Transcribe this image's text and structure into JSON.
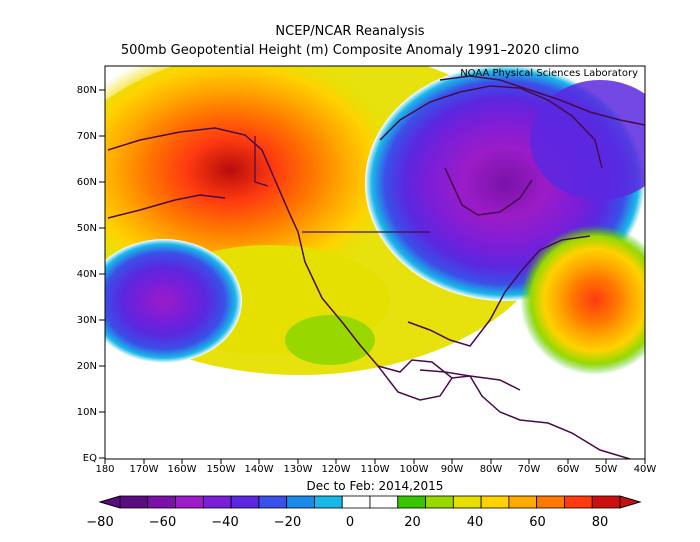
{
  "title_line1": "NCEP/NCAR Reanalysis",
  "title_line2": "500mb Geopotential Height (m) Composite Anomaly 1991–2020 climo",
  "credit": "NOAA Physical Sciences Laboratory",
  "period_label": "Dec to Feb: 2014,2015",
  "lat_labels": [
    "80N",
    "70N",
    "60N",
    "50N",
    "40N",
    "30N",
    "20N",
    "10N",
    "EQ"
  ],
  "lon_labels": [
    "180",
    "170W",
    "160W",
    "150W",
    "140W",
    "130W",
    "120W",
    "110W",
    "100W",
    "90W",
    "80W",
    "70W",
    "60W",
    "50W",
    "40W"
  ],
  "colorbar": {
    "tick_labels": [
      "−80",
      "−60",
      "−40",
      "−20",
      "0",
      "20",
      "40",
      "60",
      "80"
    ],
    "colors": [
      "#5c0a80",
      "#7a12a8",
      "#9b1cc8",
      "#7a1ed8",
      "#5a28e0",
      "#3a50e8",
      "#1c8ae8",
      "#1ab8e8",
      "#ffffff",
      "#ffffff",
      "#39c400",
      "#98d800",
      "#e6e000",
      "#ffd200",
      "#ffaa00",
      "#ff7800",
      "#ff3a10",
      "#c81010"
    ]
  },
  "chart_data": {
    "type": "heatmap",
    "variable": "500mb Geopotential Height (m) Composite Anomaly",
    "units": "m",
    "lon_range": [
      "180",
      "40W"
    ],
    "lat_range": [
      "EQ",
      "85N"
    ],
    "value_range": [
      -80,
      80
    ],
    "contour_interval": 10,
    "features": [
      {
        "region": "Gulf of Alaska / NE Pacific ridge",
        "sign": "positive",
        "peak_approx": 80
      },
      {
        "region": "Central North Pacific near 35N 165W",
        "sign": "negative",
        "peak_approx": -70
      },
      {
        "region": "Eastern North America trough near 55N 85W",
        "sign": "negative",
        "peak_approx": -80
      },
      {
        "region": "Western North Atlantic near 40N 45W",
        "sign": "positive",
        "peak_approx": 65
      }
    ]
  }
}
